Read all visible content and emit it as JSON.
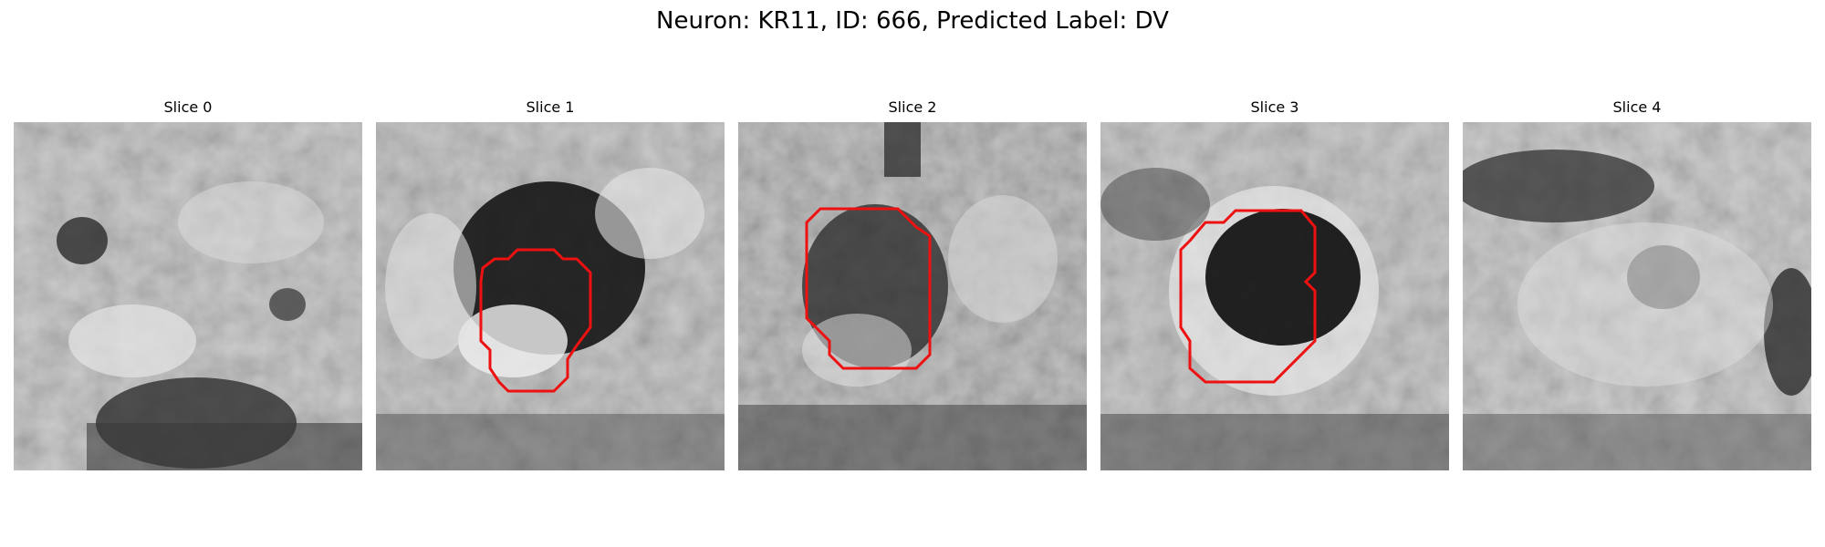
{
  "figure": {
    "title": "Neuron: KR11, ID: 666, Predicted Label: DV"
  },
  "panels": [
    {
      "title": "Slice 0",
      "has_contour": false
    },
    {
      "title": "Slice 1",
      "has_contour": true
    },
    {
      "title": "Slice 2",
      "has_contour": true
    },
    {
      "title": "Slice 3",
      "has_contour": true
    },
    {
      "title": "Slice 4",
      "has_contour": false
    }
  ],
  "colors": {
    "contour": "#ee1111",
    "background": "#ffffff"
  }
}
